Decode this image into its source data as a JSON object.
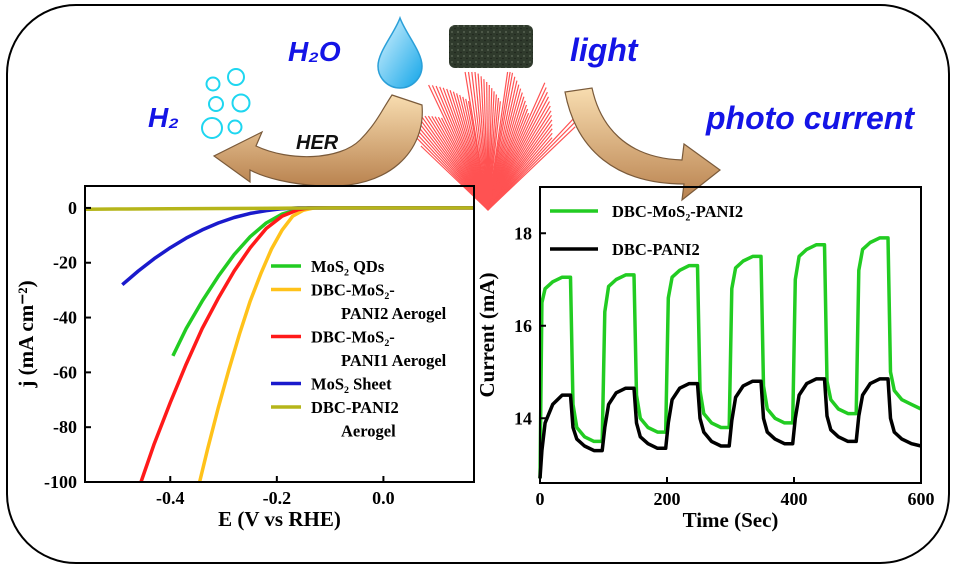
{
  "scheme": {
    "h2o": "H₂O",
    "h2": "H₂",
    "light": "light",
    "photo_current": "photo current",
    "her": "HER"
  },
  "colors": {
    "scheme_text": "#1414e6",
    "green": "#22cc22",
    "orange": "#ffc21a",
    "red": "#ff1a1a",
    "blue": "#1a1acc",
    "olive": "#b5b51a",
    "black": "#000000"
  },
  "chart_data": [
    {
      "type": "line",
      "xlabel": "E (V vs RHE)",
      "ylabel": "j (mA cm⁻²)",
      "xlim": [
        -0.56,
        0.17
      ],
      "ylim": [
        -100,
        8
      ],
      "xticks": [
        -0.4,
        -0.2,
        0.0
      ],
      "xtick_labels": [
        "-0.4",
        "-0.2",
        "0.0"
      ],
      "yticks": [
        0,
        -20,
        -40,
        -60,
        -80,
        -100
      ],
      "ytick_labels": [
        "0",
        "-20",
        "-40",
        "-60",
        "-80",
        "-100"
      ],
      "legend_position": "right",
      "series": [
        {
          "name": "MoS₂ QDs",
          "legend_lines": [
            "MoS₂ QDs"
          ],
          "color": "#22cc22",
          "x": [
            -0.395,
            -0.37,
            -0.34,
            -0.31,
            -0.28,
            -0.25,
            -0.22,
            -0.19,
            -0.16,
            -0.14,
            0.17
          ],
          "y": [
            -54,
            -44,
            -34,
            -25,
            -17,
            -10.5,
            -5.5,
            -2.2,
            -0.5,
            0,
            0
          ]
        },
        {
          "name": "DBC-MoS₂-PANI2 Aerogel",
          "legend_lines": [
            "DBC-MoS₂-",
            "PANI2 Aerogel"
          ],
          "color": "#ffc21a",
          "x": [
            -0.345,
            -0.33,
            -0.31,
            -0.29,
            -0.27,
            -0.25,
            -0.23,
            -0.21,
            -0.19,
            -0.17,
            -0.15,
            -0.13,
            0.17
          ],
          "y": [
            -100,
            -88,
            -73,
            -59,
            -46,
            -34,
            -24,
            -15,
            -8,
            -3,
            -0.8,
            0,
            0
          ]
        },
        {
          "name": "DBC-MoS₂-PANI1 Aerogel",
          "legend_lines": [
            "DBC-MoS₂-",
            "PANI1 Aerogel"
          ],
          "color": "#ff1a1a",
          "x": [
            -0.455,
            -0.43,
            -0.4,
            -0.37,
            -0.34,
            -0.31,
            -0.28,
            -0.25,
            -0.22,
            -0.19,
            -0.16,
            -0.14,
            0.17
          ],
          "y": [
            -100,
            -86,
            -71,
            -57,
            -44,
            -33,
            -23,
            -14.5,
            -7.5,
            -3,
            -0.6,
            0,
            0
          ]
        },
        {
          "name": "MoS₂ Sheet",
          "legend_lines": [
            "MoS₂ Sheet"
          ],
          "color": "#1a1acc",
          "x": [
            -0.49,
            -0.46,
            -0.43,
            -0.4,
            -0.37,
            -0.34,
            -0.31,
            -0.28,
            -0.25,
            -0.22,
            -0.19,
            -0.16,
            0.17
          ],
          "y": [
            -28,
            -23,
            -18.5,
            -14.5,
            -11,
            -8,
            -5.5,
            -3.5,
            -2,
            -1,
            -0.3,
            0,
            0
          ]
        },
        {
          "name": "DBC-PANI2 Aerogel",
          "legend_lines": [
            "DBC-PANI2",
            "Aerogel"
          ],
          "color": "#b5b51a",
          "x": [
            -0.56,
            -0.5,
            -0.4,
            -0.3,
            -0.2,
            -0.1,
            0.0,
            0.17
          ],
          "y": [
            -0.5,
            -0.4,
            -0.3,
            -0.2,
            -0.1,
            0,
            0,
            0
          ]
        }
      ]
    },
    {
      "type": "line",
      "xlabel": "Time (Sec)",
      "ylabel": "Current (mA)",
      "xlim": [
        0,
        600
      ],
      "ylim": [
        12.6,
        19.0
      ],
      "xticks": [
        0,
        200,
        400,
        600
      ],
      "xtick_labels": [
        "0",
        "200",
        "400",
        "600"
      ],
      "yticks": [
        14,
        16,
        18
      ],
      "ytick_labels": [
        "14",
        "16",
        "18"
      ],
      "legend_position": "top-left",
      "series": [
        {
          "name": "DBC-MoS₂-PANI2",
          "color": "#22cc22",
          "x": [
            0,
            3,
            8,
            20,
            35,
            48,
            52,
            58,
            70,
            85,
            98,
            102,
            108,
            120,
            135,
            148,
            152,
            158,
            170,
            185,
            198,
            202,
            208,
            220,
            235,
            248,
            252,
            258,
            270,
            285,
            298,
            302,
            308,
            320,
            335,
            348,
            352,
            358,
            370,
            385,
            398,
            402,
            408,
            420,
            435,
            448,
            452,
            458,
            470,
            485,
            498,
            502,
            508,
            520,
            535,
            548,
            552,
            558,
            570,
            585,
            600
          ],
          "y": [
            12.7,
            16.5,
            16.8,
            16.95,
            17.05,
            17.05,
            14.3,
            13.8,
            13.6,
            13.5,
            13.5,
            16.3,
            16.85,
            17.0,
            17.1,
            17.1,
            14.5,
            14.0,
            13.8,
            13.7,
            13.7,
            16.6,
            17.05,
            17.2,
            17.3,
            17.3,
            14.6,
            14.1,
            13.9,
            13.8,
            13.8,
            16.8,
            17.25,
            17.4,
            17.5,
            17.5,
            14.7,
            14.2,
            14.0,
            13.9,
            13.9,
            17.0,
            17.5,
            17.65,
            17.75,
            17.75,
            14.8,
            14.4,
            14.2,
            14.1,
            14.1,
            17.2,
            17.65,
            17.8,
            17.9,
            17.9,
            15.0,
            14.6,
            14.4,
            14.3,
            14.2
          ]
        },
        {
          "name": "DBC-PANI2",
          "color": "#000000",
          "x": [
            0,
            3,
            8,
            20,
            35,
            48,
            52,
            58,
            70,
            85,
            98,
            102,
            108,
            120,
            135,
            148,
            152,
            158,
            170,
            185,
            198,
            202,
            208,
            220,
            235,
            248,
            252,
            258,
            270,
            285,
            298,
            302,
            308,
            320,
            335,
            348,
            352,
            358,
            370,
            385,
            398,
            402,
            408,
            420,
            435,
            448,
            452,
            458,
            470,
            485,
            498,
            502,
            508,
            520,
            535,
            548,
            552,
            558,
            570,
            585,
            600
          ],
          "y": [
            12.7,
            13.3,
            13.9,
            14.3,
            14.5,
            14.5,
            13.8,
            13.55,
            13.4,
            13.3,
            13.3,
            13.8,
            14.3,
            14.55,
            14.65,
            14.65,
            13.9,
            13.6,
            13.45,
            13.35,
            13.35,
            13.9,
            14.4,
            14.65,
            14.75,
            14.75,
            14.0,
            13.7,
            13.5,
            13.4,
            13.4,
            13.95,
            14.45,
            14.7,
            14.8,
            14.8,
            14.0,
            13.7,
            13.55,
            13.45,
            13.45,
            14.0,
            14.5,
            14.75,
            14.85,
            14.85,
            14.05,
            13.75,
            13.6,
            13.5,
            13.5,
            14.05,
            14.5,
            14.75,
            14.85,
            14.85,
            14.0,
            13.7,
            13.55,
            13.45,
            13.4
          ]
        }
      ]
    }
  ]
}
